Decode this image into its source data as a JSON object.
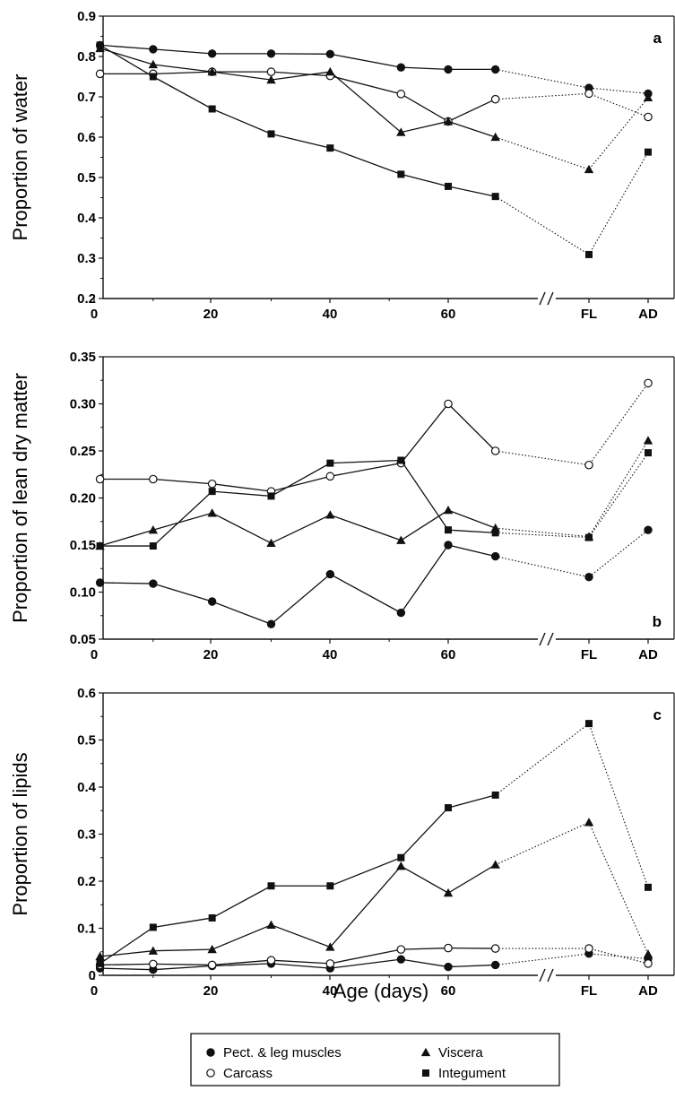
{
  "chart_data": [
    {
      "type": "line",
      "panel": "a",
      "ylabel": "Proportion of water",
      "ylim": [
        0.2,
        0.9
      ],
      "yticks": [
        0.2,
        0.3,
        0.4,
        0.5,
        0.6,
        0.7,
        0.8,
        0.9
      ],
      "ytick_labels": [
        "0.2",
        "0.3",
        "0.4",
        "0.5",
        "0.6",
        "0.7",
        "0.8",
        "0.9"
      ],
      "x": [
        "1",
        "10",
        "20",
        "30",
        "40",
        "52",
        "60",
        "68",
        "FL",
        "AD"
      ],
      "x_numeric": [
        1,
        10,
        20,
        30,
        40,
        52,
        60,
        68
      ],
      "xtick_labels": [
        "0",
        "20",
        "40",
        "60",
        "FL",
        "AD"
      ],
      "series": [
        {
          "name": "Pect. & leg muscles",
          "marker": "filled-circle",
          "values": [
            0.828,
            0.818,
            0.807,
            0.807,
            0.806,
            0.773,
            0.768,
            0.768,
            0.722,
            0.708
          ]
        },
        {
          "name": "Carcass",
          "marker": "open-circle",
          "values": [
            0.757,
            0.757,
            0.762,
            0.762,
            0.752,
            0.707,
            0.639,
            0.694,
            0.708,
            0.65
          ]
        },
        {
          "name": "Viscera",
          "marker": "filled-triangle",
          "values": [
            0.82,
            0.78,
            0.762,
            0.742,
            0.762,
            0.612,
            0.639,
            0.6,
            0.52,
            0.698
          ]
        },
        {
          "name": "Integument",
          "marker": "filled-square",
          "values": [
            0.828,
            0.75,
            0.67,
            0.608,
            0.573,
            0.508,
            0.478,
            0.453,
            0.309,
            0.563
          ]
        }
      ]
    },
    {
      "type": "line",
      "panel": "b",
      "ylabel": "Proportion of lean dry matter",
      "ylim": [
        0.05,
        0.35
      ],
      "yticks": [
        0.05,
        0.1,
        0.15,
        0.2,
        0.25,
        0.3,
        0.35
      ],
      "ytick_labels": [
        "0.05",
        "0.10",
        "0.15",
        "0.20",
        "0.25",
        "0.30",
        "0.35"
      ],
      "x": [
        "1",
        "10",
        "20",
        "30",
        "40",
        "52",
        "60",
        "68",
        "FL",
        "AD"
      ],
      "x_numeric": [
        1,
        10,
        20,
        30,
        40,
        52,
        60,
        68
      ],
      "xtick_labels": [
        "0",
        "20",
        "40",
        "60",
        "FL",
        "AD"
      ],
      "series": [
        {
          "name": "Pect. & leg muscles",
          "marker": "filled-circle",
          "values": [
            0.11,
            0.109,
            0.09,
            0.066,
            0.119,
            0.078,
            0.15,
            0.138,
            0.116,
            0.166
          ]
        },
        {
          "name": "Carcass",
          "marker": "open-circle",
          "values": [
            0.22,
            0.22,
            0.215,
            0.207,
            0.223,
            0.237,
            0.3,
            0.25,
            0.235,
            0.322
          ]
        },
        {
          "name": "Viscera",
          "marker": "filled-triangle",
          "values": [
            0.149,
            0.166,
            0.184,
            0.152,
            0.182,
            0.155,
            0.187,
            0.168,
            0.159,
            0.261
          ]
        },
        {
          "name": "Integument",
          "marker": "filled-square",
          "values": [
            0.149,
            0.149,
            0.207,
            0.202,
            0.237,
            0.24,
            0.166,
            0.163,
            0.158,
            0.248
          ]
        }
      ]
    },
    {
      "type": "line",
      "panel": "c",
      "ylabel": "Proportion of lipids",
      "xlabel": "Age (days)",
      "ylim": [
        0,
        0.6
      ],
      "yticks": [
        0,
        0.1,
        0.2,
        0.3,
        0.4,
        0.5,
        0.6
      ],
      "ytick_labels": [
        "0",
        "0.1",
        "0.2",
        "0.3",
        "0.4",
        "0.5",
        "0.6"
      ],
      "x": [
        "1",
        "10",
        "20",
        "30",
        "40",
        "52",
        "60",
        "68",
        "FL",
        "AD"
      ],
      "x_numeric": [
        1,
        10,
        20,
        30,
        40,
        52,
        60,
        68
      ],
      "xtick_labels": [
        "0",
        "20",
        "40",
        "60",
        "FL",
        "AD"
      ],
      "series": [
        {
          "name": "Pect. & leg muscles",
          "marker": "filled-circle",
          "values": [
            0.015,
            0.012,
            0.02,
            0.025,
            0.015,
            0.034,
            0.018,
            0.022,
            0.046,
            0.035
          ]
        },
        {
          "name": "Carcass",
          "marker": "open-circle",
          "values": [
            0.022,
            0.024,
            0.022,
            0.032,
            0.025,
            0.055,
            0.058,
            0.057,
            0.057,
            0.025
          ]
        },
        {
          "name": "Viscera",
          "marker": "filled-triangle",
          "values": [
            0.04,
            0.052,
            0.055,
            0.107,
            0.06,
            0.232,
            0.175,
            0.235,
            0.325,
            0.045
          ]
        },
        {
          "name": "Integument",
          "marker": "filled-square",
          "values": [
            0.025,
            0.102,
            0.122,
            0.19,
            0.19,
            0.25,
            0.356,
            0.383,
            0.535,
            0.187
          ]
        }
      ]
    }
  ],
  "legend": [
    {
      "label": "Pect. & leg muscles",
      "marker": "filled-circle"
    },
    {
      "label": "Viscera",
      "marker": "filled-triangle"
    },
    {
      "label": "Carcass",
      "marker": "open-circle"
    },
    {
      "label": "Integument",
      "marker": "filled-square"
    }
  ],
  "panel_letters": [
    "a",
    "b",
    "c"
  ],
  "xlabel": "Age (days)",
  "legend_placement": "bottom-center",
  "grid": false,
  "colors": {
    "ink": "#111111",
    "background": "#ffffff"
  }
}
